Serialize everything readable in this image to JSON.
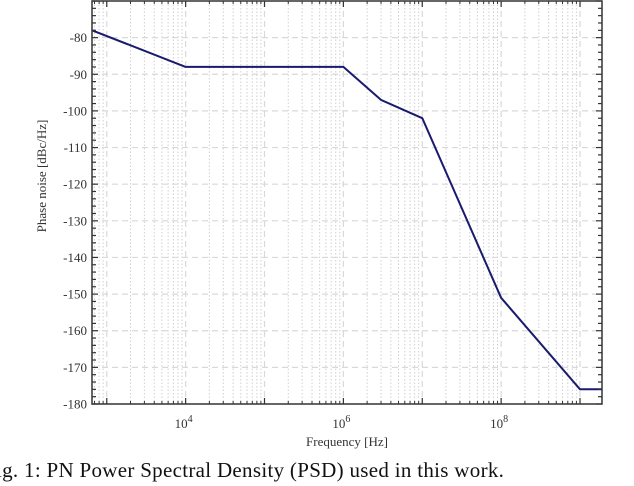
{
  "chart_data": {
    "type": "line",
    "title": "",
    "xlabel": "Frequency [Hz]",
    "ylabel": "Phase noise [dBc/Hz]",
    "xscale": "log",
    "xlim": [
      650,
      1900000000
    ],
    "ylim": [
      -180,
      -70
    ],
    "grid": true,
    "x_tick_labels": [
      "10^4",
      "10^6",
      "10^8"
    ],
    "x_ticks": [
      10000,
      1000000,
      100000000
    ],
    "y_ticks": [
      -80,
      -90,
      -100,
      -110,
      -120,
      -130,
      -140,
      -150,
      -160,
      -170,
      -180
    ],
    "y_tick_labels": [
      "-80",
      "-90",
      "-100",
      "-110",
      "-120",
      "-130",
      "-140",
      "-150",
      "-160",
      "-170",
      "-180"
    ],
    "series": [
      {
        "name": "PN PSD",
        "color": "#1a1a6e",
        "x": [
          650,
          10000,
          1000000,
          3000000,
          10000000,
          100000000,
          1000000000,
          1900000000
        ],
        "values": [
          -78,
          -88,
          -88,
          -97,
          -102,
          -151,
          -176,
          -176
        ]
      }
    ],
    "legend": null
  },
  "caption": {
    "text": "Fig. 1: PN Power Spectral Density (PSD) used in this work."
  },
  "colors": {
    "line": "#1a1a6e",
    "axis": "#333333",
    "grid_major": "#d9d9d9",
    "grid_minor": "#d0d0d0"
  }
}
